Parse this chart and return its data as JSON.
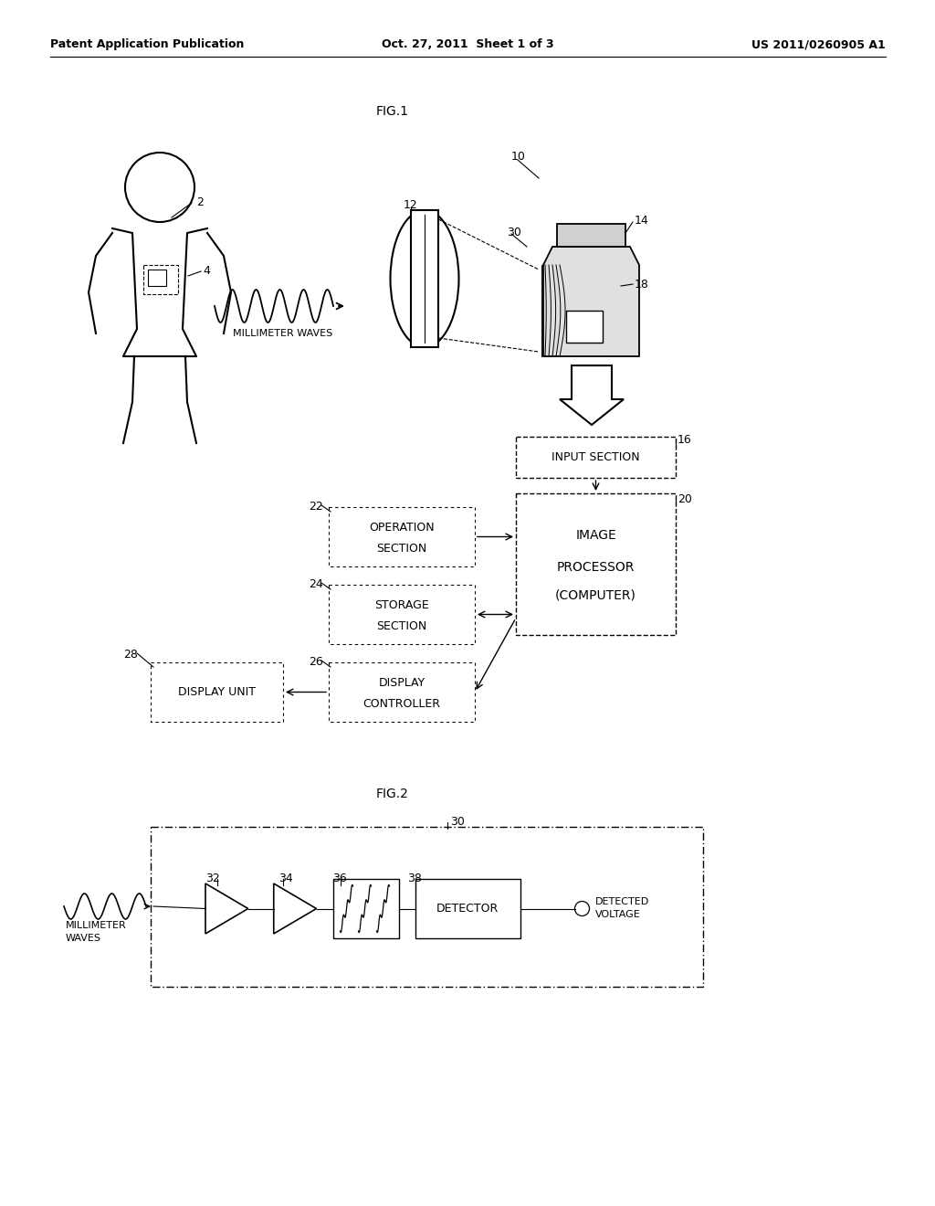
{
  "bg_color": "#ffffff",
  "header_left": "Patent Application Publication",
  "header_center": "Oct. 27, 2011  Sheet 1 of 3",
  "header_right": "US 2011/0260905 A1",
  "fig1_label": "FIG.1",
  "fig2_label": "FIG.2"
}
